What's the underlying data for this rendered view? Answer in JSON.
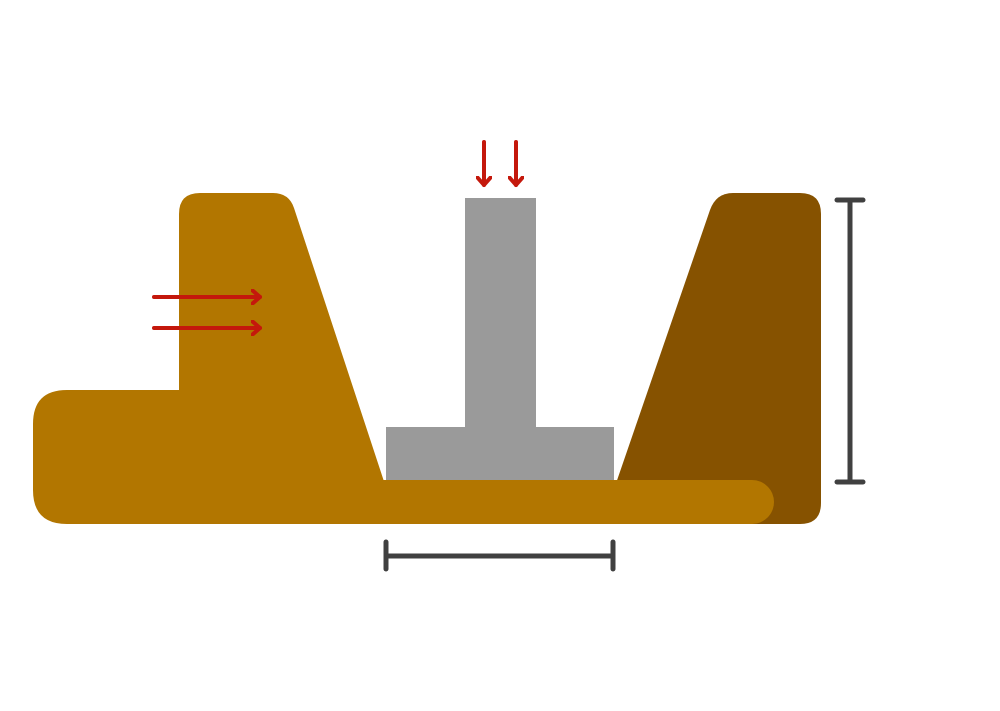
{
  "diagram": {
    "colors": {
      "background": "#ffffff",
      "soil_left": "#b27600",
      "soil_right": "#865200",
      "footing": "#9a9a9a",
      "load_arrow": "#c4180c",
      "dimension_line": "#404040"
    },
    "elements": {
      "soil_left": {
        "label": "",
        "icon": "soil-mass"
      },
      "soil_right": {
        "label": "",
        "icon": "soil-mass"
      },
      "footing": {
        "label": "",
        "icon": "inverted-t-footing"
      },
      "vertical_load": {
        "label": "",
        "icon": "down-arrows-icon",
        "count": 2
      },
      "lateral_load": {
        "label": "",
        "icon": "right-arrows-icon",
        "count": 2
      },
      "footing_width_dimension": {
        "label": "",
        "icon": "horizontal-dimension-icon"
      },
      "depth_dimension": {
        "label": "",
        "icon": "vertical-dimension-icon"
      }
    }
  }
}
